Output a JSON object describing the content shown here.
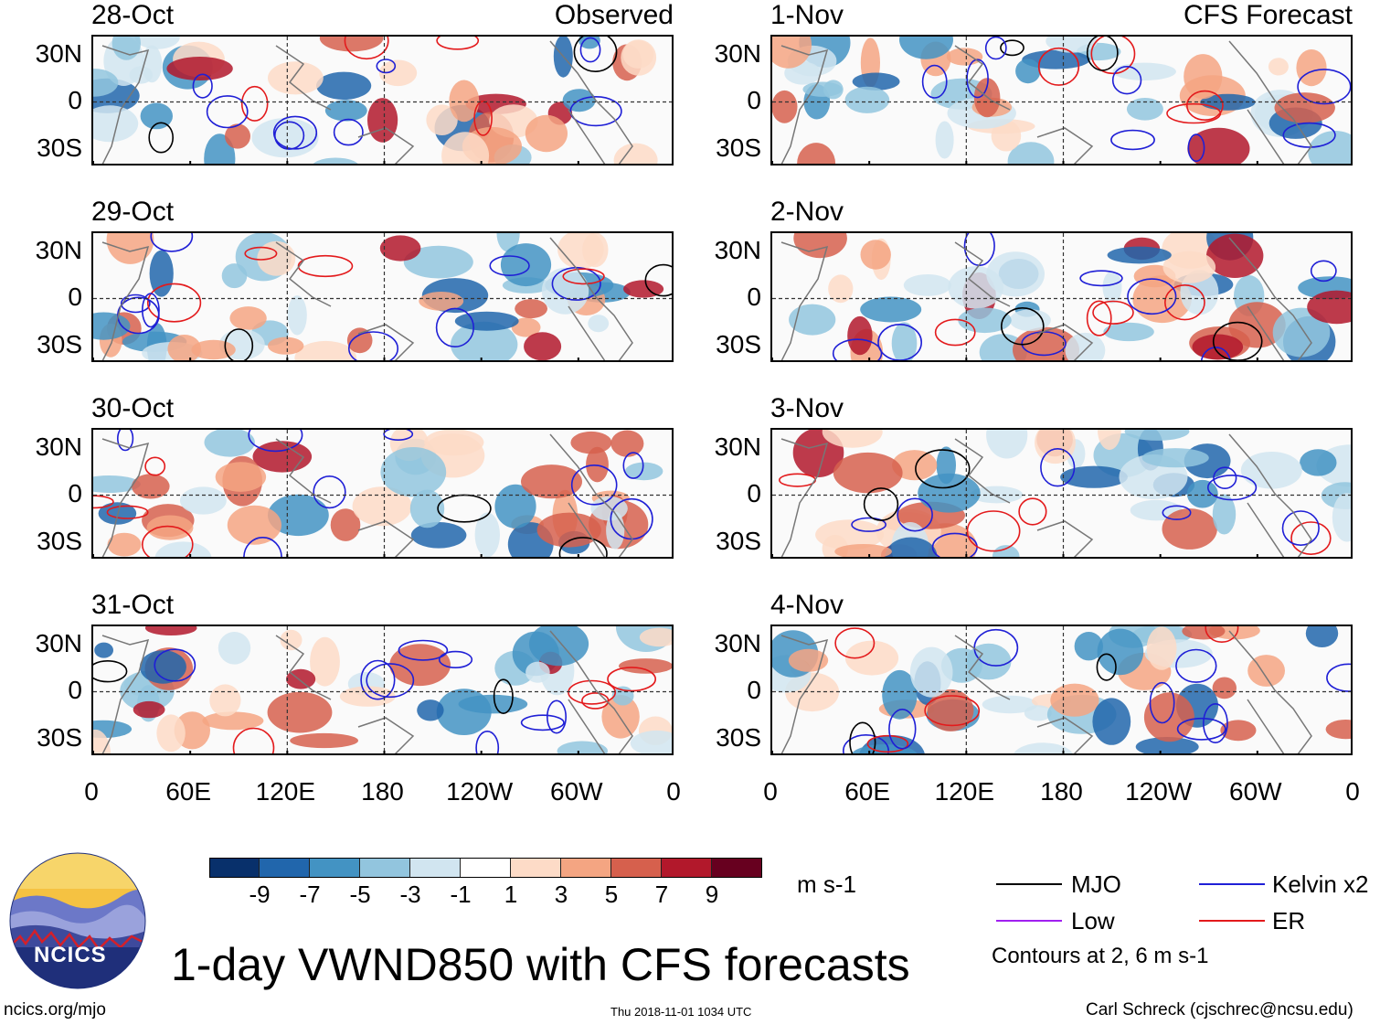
{
  "chart_data": {
    "type": "heatmap",
    "title": "1-day VWND850 with CFS forecasts",
    "variable": "VWND850",
    "units": "m s-1",
    "latitude_ticks": [
      "30N",
      "0",
      "30S"
    ],
    "longitude_ticks": [
      "0",
      "60E",
      "120E",
      "180",
      "120W",
      "60W",
      "0"
    ],
    "colorbar": {
      "levels": [
        -9,
        -7,
        -5,
        -3,
        -1,
        1,
        3,
        5,
        7,
        9
      ],
      "colors": [
        "#08306b",
        "#2166ac",
        "#4393c3",
        "#92c5de",
        "#d1e5f0",
        "#ffffff",
        "#fddbc7",
        "#f4a582",
        "#d6604d",
        "#b2182b",
        "#67001f"
      ],
      "tick_labels": [
        "-9",
        "-7",
        "-5",
        "-3",
        "-1",
        "1",
        "3",
        "5",
        "7",
        "9"
      ]
    },
    "panels": [
      {
        "date": "28-Oct",
        "tag": "Observed",
        "column": "observed"
      },
      {
        "date": "29-Oct",
        "tag": "",
        "column": "observed"
      },
      {
        "date": "30-Oct",
        "tag": "",
        "column": "observed"
      },
      {
        "date": "31-Oct",
        "tag": "",
        "column": "observed"
      },
      {
        "date": "1-Nov",
        "tag": "CFS Forecast",
        "column": "forecast"
      },
      {
        "date": "2-Nov",
        "tag": "",
        "column": "forecast"
      },
      {
        "date": "3-Nov",
        "tag": "",
        "column": "forecast"
      },
      {
        "date": "4-Nov",
        "tag": "",
        "column": "forecast"
      }
    ],
    "contour_legend": [
      {
        "label": "MJO",
        "color": "#000000"
      },
      {
        "label": "Kelvin x2",
        "color": "#1f1fd6"
      },
      {
        "label": "Low",
        "color": "#a020f0"
      },
      {
        "label": "ER",
        "color": "#e31a1c"
      }
    ],
    "contour_note": "Contours at 2, 6 m s-1"
  },
  "footer": {
    "logo_text": "NCICS",
    "url": "ncics.org/mjo",
    "timestamp": "Thu 2018-11-01 1034 UTC",
    "author": "Carl Schreck (cjschrec@ncsu.edu)"
  }
}
